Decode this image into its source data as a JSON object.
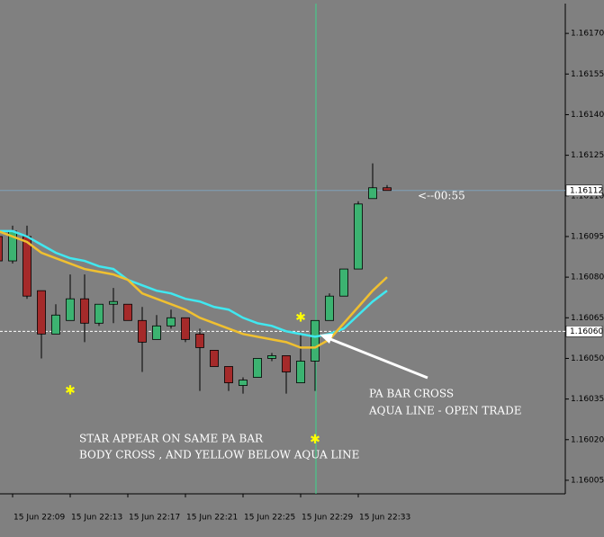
{
  "chart_data": {
    "type": "candlestick",
    "categories": [
      null,
      "15 Jun 22:09",
      null,
      null,
      null,
      "15 Jun 22:13",
      null,
      null,
      null,
      "15 Jun 22:17",
      null,
      null,
      null,
      "15 Jun 22:21",
      null,
      null,
      null,
      "15 Jun 22:25",
      null,
      null,
      null,
      "15 Jun 22:29",
      null,
      null,
      null,
      "15 Jun 22:33",
      null,
      null
    ],
    "open": [
      1.16095,
      1.16086,
      1.16095,
      1.16075,
      1.16059,
      1.16064,
      1.16072,
      1.16063,
      1.1607,
      1.1607,
      1.16064,
      1.16057,
      1.16062,
      1.16065,
      1.16059,
      1.16053,
      1.16047,
      1.1604,
      1.16043,
      1.1605,
      1.16051,
      1.16041,
      1.16049,
      1.16064,
      1.16073,
      1.16083,
      1.16109,
      1.16113
    ],
    "high": [
      1.16099,
      1.16099,
      1.16099,
      1.16075,
      1.1607,
      1.16081,
      1.16081,
      1.1607,
      1.16076,
      1.1607,
      1.16069,
      1.16066,
      1.16068,
      1.16065,
      1.16061,
      1.16053,
      1.16047,
      1.16043,
      1.1605,
      1.16052,
      1.16051,
      1.16059,
      1.16064,
      1.16074,
      1.16083,
      1.16108,
      1.16122,
      1.16114
    ],
    "low": [
      1.16085,
      1.16085,
      1.16072,
      1.1605,
      1.16059,
      1.16064,
      1.16056,
      1.16062,
      1.16063,
      1.16064,
      1.16045,
      1.16057,
      1.16061,
      1.16056,
      1.16038,
      1.16047,
      1.16038,
      1.16037,
      1.16043,
      1.16049,
      1.16037,
      1.16041,
      1.16038,
      1.16064,
      1.16073,
      1.16083,
      1.16109,
      1.16112
    ],
    "close": [
      1.16086,
      1.16097,
      1.16073,
      1.16059,
      1.16066,
      1.16072,
      1.16063,
      1.1607,
      1.16071,
      1.16064,
      1.16056,
      1.16062,
      1.16065,
      1.16057,
      1.16054,
      1.16047,
      1.16041,
      1.16042,
      1.1605,
      1.16051,
      1.16045,
      1.16049,
      1.16064,
      1.16073,
      1.16083,
      1.16107,
      1.16113,
      1.16112
    ],
    "up_color": "#3cb371",
    "down_color": "#a52a2a",
    "moving_averages": [
      {
        "color": "#40e8f0",
        "values": [
          1.16097,
          1.16097,
          1.16095,
          1.16092,
          1.16089,
          1.16087,
          1.16086,
          1.16084,
          1.16083,
          1.16079,
          1.16077,
          1.16075,
          1.16074,
          1.16072,
          1.16071,
          1.16069,
          1.16068,
          1.16065,
          1.16063,
          1.16062,
          1.1606,
          1.16059,
          1.16058,
          1.16059,
          1.16061,
          1.16066,
          1.16071,
          1.16075
        ]
      },
      {
        "color": "#f0c030",
        "values": [
          1.16097,
          1.16095,
          1.16093,
          1.16089,
          1.16087,
          1.16085,
          1.16083,
          1.16082,
          1.16081,
          1.16079,
          1.16074,
          1.16072,
          1.1607,
          1.16068,
          1.16065,
          1.16063,
          1.16061,
          1.16059,
          1.16058,
          1.16057,
          1.16056,
          1.16054,
          1.16054,
          1.16057,
          1.16063,
          1.16069,
          1.16075,
          1.1608
        ]
      }
    ],
    "stars": {
      "color": "#ffff00",
      "values": [
        null,
        null,
        null,
        null,
        null,
        1.16038,
        null,
        null,
        null,
        null,
        null,
        null,
        null,
        null,
        null,
        null,
        null,
        null,
        null,
        null,
        null,
        1.16065,
        1.1602,
        null,
        null,
        null,
        null,
        null
      ]
    },
    "ylim": [
      1.16,
      1.16181
    ],
    "yticks": [
      {
        "value": 1.16005,
        "label": "1.16005"
      },
      {
        "value": 1.1602,
        "label": "1.16020"
      },
      {
        "value": 1.16035,
        "label": "1.16035"
      },
      {
        "value": 1.1605,
        "label": "1.16050"
      },
      {
        "value": 1.16065,
        "label": "1.16065"
      },
      {
        "value": 1.1608,
        "label": "1.16080"
      },
      {
        "value": 1.16095,
        "label": "1.16095"
      },
      {
        "value": 1.1611,
        "label": "1.16110"
      },
      {
        "value": 1.16125,
        "label": "1.16125"
      },
      {
        "value": 1.1614,
        "label": "1.16140"
      },
      {
        "value": 1.16155,
        "label": "1.16155"
      },
      {
        "value": 1.1617,
        "label": "1.16170"
      }
    ],
    "price_lines": [
      {
        "value": 1.16112,
        "label": "1.16112",
        "color": "#7f9fb8",
        "dashed": false
      },
      {
        "value": 1.1606,
        "label": "1.16060",
        "color": "#ffffff",
        "dashed": true
      }
    ],
    "countdown": "<--00:55",
    "annotations": [
      "PA BAR CROSS",
      "AQUA LINE - OPEN TRADE",
      "STAR APPEAR ON SAME PA BAR",
      "BODY CROSS , AND YELLOW BELOW AQUA LINE"
    ]
  }
}
